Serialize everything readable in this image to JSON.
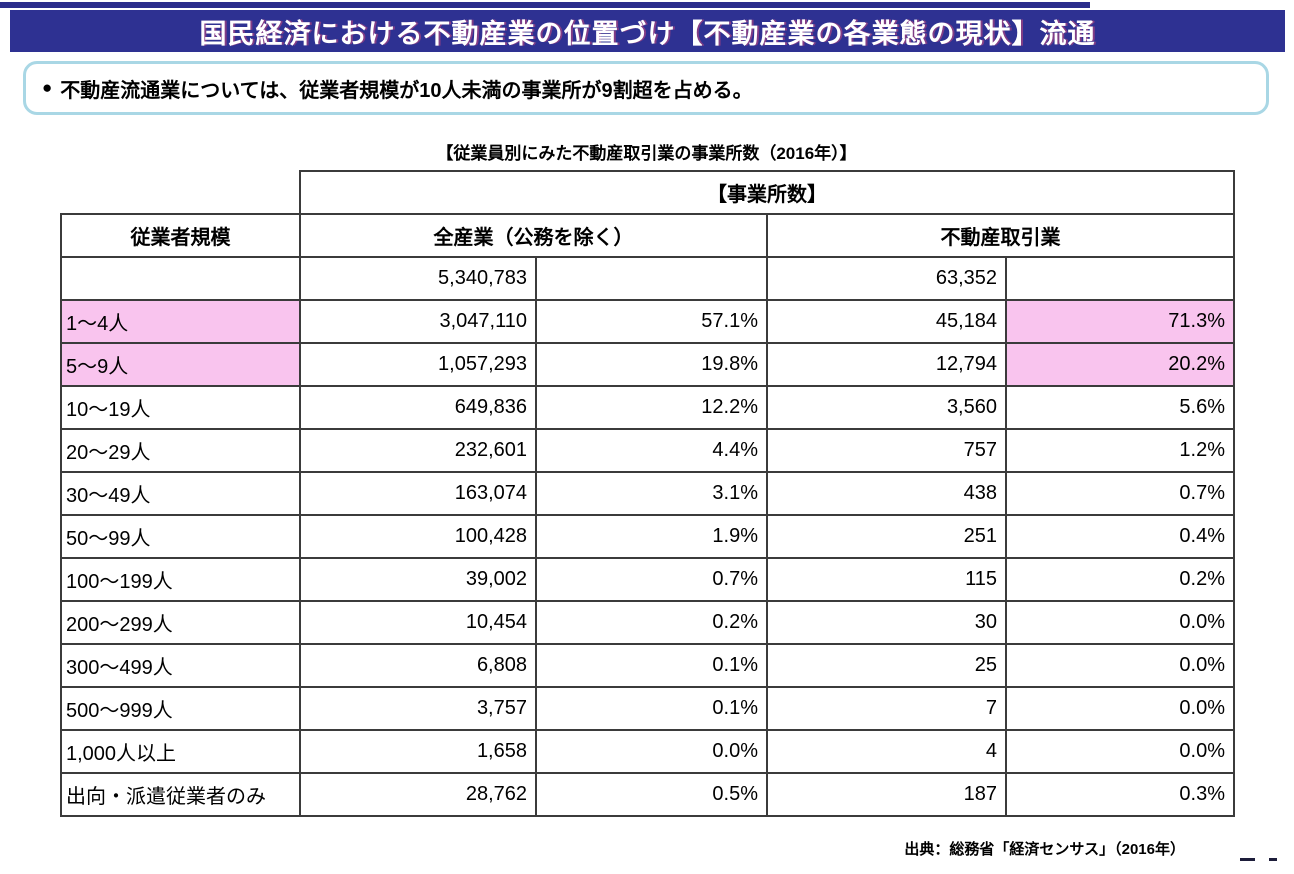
{
  "page": {
    "title": "国民経済における不動産業の位置づけ【不動産業の各業態の現状】流通",
    "bullet": {
      "marker": "●",
      "text": "不動産流通業については、従業者規模が10人未満の事業所が9割超を占める。"
    },
    "source": "出典：総務省「経済センサス」（2016年）"
  },
  "colors": {
    "navy": "#2e3192",
    "navy_dark": "#2b2d8c",
    "pink": "#f9c4ee",
    "callout_border": "#a9d7e5"
  },
  "table": {
    "caption": "【従業員別にみた不動産取引業の事業所数（2016年）】",
    "group_header": "【事業所数】",
    "col_headers": {
      "scale": "従業者規模",
      "all_industries": "全産業（公務を除く）",
      "real_estate": "不動産取引業"
    },
    "totals": {
      "all_count": "5,340,783",
      "re_count": "63,352"
    },
    "rows": [
      {
        "label": "1～4人",
        "all_count": "3,047,110",
        "all_pct": "57.1%",
        "re_count": "45,184",
        "re_pct": "71.3%",
        "highlight": true
      },
      {
        "label": "5～9人",
        "all_count": "1,057,293",
        "all_pct": "19.8%",
        "re_count": "12,794",
        "re_pct": "20.2%",
        "highlight": true
      },
      {
        "label": "10～19人",
        "all_count": "649,836",
        "all_pct": "12.2%",
        "re_count": "3,560",
        "re_pct": "5.6%",
        "highlight": false
      },
      {
        "label": "20～29人",
        "all_count": "232,601",
        "all_pct": "4.4%",
        "re_count": "757",
        "re_pct": "1.2%",
        "highlight": false
      },
      {
        "label": "30～49人",
        "all_count": "163,074",
        "all_pct": "3.1%",
        "re_count": "438",
        "re_pct": "0.7%",
        "highlight": false
      },
      {
        "label": "50～99人",
        "all_count": "100,428",
        "all_pct": "1.9%",
        "re_count": "251",
        "re_pct": "0.4%",
        "highlight": false
      },
      {
        "label": "100～199人",
        "all_count": "39,002",
        "all_pct": "0.7%",
        "re_count": "115",
        "re_pct": "0.2%",
        "highlight": false
      },
      {
        "label": "200～299人",
        "all_count": "10,454",
        "all_pct": "0.2%",
        "re_count": "30",
        "re_pct": "0.0%",
        "highlight": false
      },
      {
        "label": "300～499人",
        "all_count": "6,808",
        "all_pct": "0.1%",
        "re_count": "25",
        "re_pct": "0.0%",
        "highlight": false
      },
      {
        "label": "500～999人",
        "all_count": "3,757",
        "all_pct": "0.1%",
        "re_count": "7",
        "re_pct": "0.0%",
        "highlight": false
      },
      {
        "label": "1,000人以上",
        "all_count": "1,658",
        "all_pct": "0.0%",
        "re_count": "4",
        "re_pct": "0.0%",
        "highlight": false
      },
      {
        "label": "出向・派遣従業者のみ",
        "all_count": "28,762",
        "all_pct": "0.5%",
        "re_count": "187",
        "re_pct": "0.3%",
        "highlight": false
      }
    ]
  }
}
